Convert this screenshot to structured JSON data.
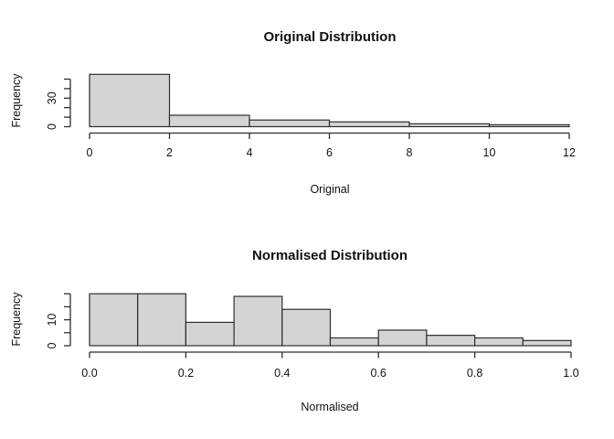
{
  "page": {
    "background": "#ffffff",
    "description_labels": {
      "top_chart_title": "Original Distribution",
      "bottom_chart_title": "Normalised Distribution"
    }
  },
  "chart_data": [
    {
      "type": "bar",
      "subtype": "histogram",
      "title": "Original Distribution",
      "xlabel": "Original",
      "ylabel": "Frequency",
      "bin_breaks": [
        0,
        2,
        4,
        6,
        8,
        10,
        12
      ],
      "counts": [
        55,
        12,
        7,
        5,
        3,
        2
      ],
      "x_tick_values": [
        0,
        2,
        4,
        6,
        8,
        10,
        12
      ],
      "x_tick_labels": [
        "0",
        "2",
        "4",
        "6",
        "8",
        "10",
        "12"
      ],
      "y_tick_values": [
        0,
        10,
        20,
        30,
        40,
        50
      ],
      "y_tick_labels": [
        "0",
        "",
        "",
        "30",
        "",
        ""
      ],
      "xlim": [
        0,
        12
      ],
      "ylim": [
        0,
        55
      ],
      "grid": false,
      "legend": false,
      "bar_fill": "#d4d4d4",
      "bar_border": "#2e2e2e",
      "axis_color": "#2e2e2e",
      "text_color": "#111111"
    },
    {
      "type": "bar",
      "subtype": "histogram",
      "title": "Normalised Distribution",
      "xlabel": "Normalised",
      "ylabel": "Frequency",
      "bin_breaks": [
        0,
        0.1,
        0.2,
        0.3,
        0.4,
        0.5,
        0.6,
        0.7,
        0.8,
        0.9,
        1.0
      ],
      "counts": [
        20,
        20,
        9,
        19,
        14,
        3,
        6,
        4,
        3,
        2
      ],
      "x_tick_values": [
        0,
        0.2,
        0.4,
        0.6,
        0.8,
        1.0
      ],
      "x_tick_labels": [
        "0.0",
        "0.2",
        "0.4",
        "0.6",
        "0.8",
        "1.0"
      ],
      "y_tick_values": [
        0,
        5,
        10,
        15,
        20
      ],
      "y_tick_labels": [
        "0",
        "",
        "10",
        "",
        ""
      ],
      "xlim": [
        0,
        1
      ],
      "ylim": [
        0,
        20
      ],
      "grid": false,
      "legend": false,
      "bar_fill": "#d4d4d4",
      "bar_border": "#2e2e2e",
      "axis_color": "#2e2e2e",
      "text_color": "#111111"
    }
  ]
}
